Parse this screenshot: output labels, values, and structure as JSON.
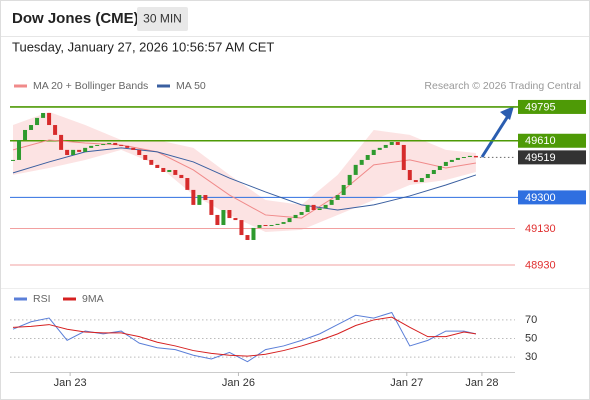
{
  "chart_data": {
    "type": "candlestick",
    "title": "Dow Jones (CME)",
    "timeframe": "30 MIN",
    "timestamp": "Tuesday, January 27, 2026 10:56:57 AM CET",
    "source": "Research © 2026 Trading Central",
    "x": [
      0,
      1,
      2,
      3,
      4,
      5,
      6,
      7,
      8,
      9,
      10,
      11,
      12,
      13,
      14,
      15,
      16,
      17,
      18,
      19,
      20,
      21,
      22,
      23,
      24,
      25,
      26,
      27,
      28,
      29,
      30,
      31,
      32,
      33,
      34,
      35,
      36,
      37,
      38,
      39,
      40,
      41,
      42,
      43,
      44,
      45,
      46,
      47,
      48,
      49,
      50,
      51,
      52,
      53,
      54,
      55,
      56,
      57,
      58,
      59,
      60,
      61,
      62,
      63,
      64,
      65,
      66,
      67,
      68,
      69,
      70,
      71,
      72,
      73,
      74,
      75,
      76,
      77
    ],
    "close": [
      49505,
      49614,
      49669,
      49696,
      49735,
      49762,
      49696,
      49642,
      49560,
      49532,
      49560,
      49549,
      49571,
      49582,
      49587,
      49592,
      49598,
      49587,
      49582,
      49571,
      49560,
      49532,
      49505,
      49478,
      49461,
      49439,
      49450,
      49423,
      49406,
      49341,
      49259,
      49313,
      49286,
      49204,
      49149,
      49231,
      49187,
      49176,
      49094,
      49067,
      49133,
      49149,
      49144,
      49149,
      49155,
      49165,
      49187,
      49204,
      49220,
      49259,
      49231,
      49240,
      49259,
      49286,
      49313,
      49368,
      49423,
      49478,
      49505,
      49532,
      49560,
      49571,
      49587,
      49603,
      49587,
      49450,
      49395,
      49384,
      49406,
      49428,
      49450,
      49472,
      49494,
      49505,
      49516,
      49521,
      49527,
      49519
    ],
    "up_color": "#2e9a2e",
    "down_color": "#d62b2b",
    "xlim": [
      -0.5,
      83.5
    ],
    "xticks": [
      {
        "value": 9.5,
        "label": "Jan 23"
      },
      {
        "value": 37.5,
        "label": "Jan 26"
      },
      {
        "value": 65.5,
        "label": "Jan 27"
      },
      {
        "value": 78,
        "label": "Jan 28"
      }
    ],
    "ylim": [
      48848,
      49833
    ],
    "series": [
      {
        "name": "MA 20 + Bollinger Bands",
        "color": "#f08a8a",
        "band_color": "#fbd9d9",
        "x": [
          0,
          6,
          12,
          18,
          24,
          30,
          36,
          42,
          48,
          54,
          60,
          66,
          72,
          77
        ],
        "values": [
          49560,
          49614,
          49598,
          49587,
          49549,
          49450,
          49313,
          49204,
          49187,
          49313,
          49478,
          49505,
          49461,
          49488
        ],
        "upper": [
          49696,
          49768,
          49696,
          49614,
          49614,
          49571,
          49423,
          49286,
          49259,
          49423,
          49669,
          49642,
          49560,
          49543
        ],
        "lower": [
          49423,
          49461,
          49505,
          49560,
          49478,
          49313,
          49204,
          49111,
          49122,
          49204,
          49286,
          49368,
          49395,
          49439
        ]
      },
      {
        "name": "MA 50",
        "color": "#3a5fa0",
        "x": [
          0,
          6,
          12,
          18,
          24,
          30,
          36,
          42,
          48,
          54,
          60,
          66,
          72,
          77
        ],
        "values": [
          49434,
          49494,
          49549,
          49571,
          49549,
          49494,
          49406,
          49330,
          49259,
          49231,
          49259,
          49308,
          49368,
          49423
        ]
      }
    ],
    "levels": [
      {
        "value": 49795,
        "color": "#4e9a06",
        "box": true
      },
      {
        "value": 49610,
        "color": "#4e9a06",
        "box": true
      },
      {
        "value": 49519,
        "color": "#333333",
        "box": true,
        "dotted": true
      },
      {
        "value": 49300,
        "color": "#2f6fe0",
        "box": true
      },
      {
        "value": 49130,
        "color": "#e03030",
        "box": false
      },
      {
        "value": 48930,
        "color": "#e03030",
        "box": false
      }
    ],
    "oscillator": {
      "ylim": [
        15,
        85
      ],
      "yticks": [
        70,
        50,
        30
      ],
      "x": [
        0,
        3,
        6,
        9,
        12,
        15,
        18,
        21,
        24,
        27,
        30,
        33,
        36,
        39,
        42,
        45,
        48,
        51,
        54,
        57,
        60,
        63,
        66,
        69,
        72,
        75,
        77
      ],
      "series": [
        {
          "name": "RSI",
          "color": "#5b7fd8",
          "values": [
            60,
            68,
            72,
            48,
            58,
            55,
            58,
            45,
            40,
            38,
            32,
            28,
            35,
            25,
            38,
            42,
            48,
            55,
            65,
            75,
            72,
            78,
            42,
            48,
            58,
            58,
            55
          ]
        },
        {
          "name": "9MA",
          "color": "#d62020",
          "values": [
            62,
            63,
            65,
            60,
            57,
            56,
            56,
            52,
            46,
            42,
            37,
            34,
            32,
            31,
            33,
            37,
            42,
            48,
            55,
            64,
            70,
            73,
            62,
            52,
            52,
            57,
            55
          ]
        }
      ]
    }
  }
}
